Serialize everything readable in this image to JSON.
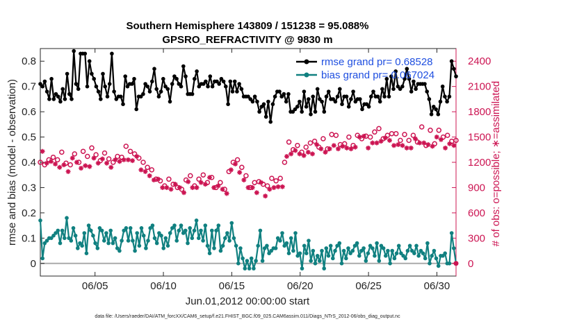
{
  "chart_data": {
    "type": "line",
    "title_line1": "Southern Hemisphere 143809 / 151238 = 95.088%",
    "title_line2": "GPSRO_REFRACTIVITY @ 9830 m",
    "xlabel": "Jun.01,2012 00:00:00 start",
    "ylabel_left": "rmse and bias (model - observation)",
    "ylabel_right": "# of obs: o=possible; ∗=assimilated",
    "footer": "data file: /Users/raeder/DAI/ATM_forcXX/CAM6_setup/f.e21.FHIST_BGC.f09_025.CAM6assim.011/Diags_NTrS_2012-06/obs_diag_output.nc",
    "x_range_days": [
      1,
      31.4
    ],
    "y_left_range": [
      -0.05,
      0.85
    ],
    "y_right_range": [
      -150,
      2550
    ],
    "x_ticks": [
      {
        "day": 5,
        "label": "06/05"
      },
      {
        "day": 10,
        "label": "06/10"
      },
      {
        "day": 15,
        "label": "06/15"
      },
      {
        "day": 20,
        "label": "06/20"
      },
      {
        "day": 25,
        "label": "06/25"
      },
      {
        "day": 30,
        "label": "06/30"
      }
    ],
    "y_left_ticks": [
      0,
      0.1,
      0.2,
      0.3,
      0.4,
      0.5,
      0.6,
      0.7,
      0.8
    ],
    "y_right_ticks": [
      0,
      300,
      600,
      900,
      1200,
      1500,
      1800,
      2100,
      2400
    ],
    "legend": [
      {
        "label": "rmse grand pr= 0.68528",
        "color": "#000000"
      },
      {
        "label": "bias grand pr= 0.067024",
        "color": "#108080"
      }
    ],
    "series": [
      {
        "name": "rmse",
        "color": "#000000",
        "axis": "left",
        "values": [
          0.71,
          0.7,
          0.72,
          0.68,
          0.65,
          0.73,
          0.65,
          0.67,
          0.66,
          0.64,
          0.69,
          0.65,
          0.75,
          0.67,
          0.65,
          0.84,
          0.71,
          0.69,
          0.83,
          0.83,
          0.83,
          0.7,
          0.8,
          0.75,
          0.73,
          0.7,
          0.68,
          0.65,
          0.75,
          0.7,
          0.66,
          0.71,
          0.83,
          0.68,
          0.65,
          0.66,
          0.66,
          0.63,
          0.74,
          0.7,
          0.71,
          0.71,
          0.73,
          0.61,
          0.66,
          0.66,
          0.67,
          0.71,
          0.7,
          0.68,
          0.72,
          0.77,
          0.69,
          0.66,
          0.68,
          0.73,
          0.7,
          0.69,
          0.64,
          0.71,
          0.74,
          0.73,
          0.71,
          0.7,
          0.78,
          0.74,
          0.67,
          0.67,
          0.67,
          0.73,
          0.76,
          0.7,
          0.71,
          0.71,
          0.72,
          0.7,
          0.74,
          0.7,
          0.72,
          0.72,
          0.71,
          0.73,
          0.72,
          0.7,
          0.63,
          0.72,
          0.68,
          0.72,
          0.68,
          0.71,
          0.69,
          0.66,
          0.66,
          0.66,
          0.65,
          0.64,
          0.66,
          0.64,
          0.6,
          0.62,
          0.63,
          0.58,
          0.64,
          0.56,
          0.63,
          0.66,
          0.68,
          0.68,
          0.66,
          0.67,
          0.64,
          0.67,
          0.6,
          0.6,
          0.61,
          0.62,
          0.64,
          0.6,
          0.68,
          0.62,
          0.65,
          0.59,
          0.66,
          0.6,
          0.69,
          0.65,
          0.64,
          0.6,
          0.66,
          0.68,
          0.65,
          0.65,
          0.64,
          0.66,
          0.69,
          0.63,
          0.66,
          0.66,
          0.62,
          0.65,
          0.68,
          0.64,
          0.65,
          0.65,
          0.61,
          0.63,
          0.63,
          0.62,
          0.66,
          0.68,
          0.66,
          0.66,
          0.64,
          0.69,
          0.66,
          0.73,
          0.66,
          0.74,
          0.69,
          0.76,
          0.7,
          0.69,
          0.7,
          0.73,
          0.77,
          0.73,
          0.68,
          0.72,
          0.69,
          0.71,
          0.71,
          0.71,
          0.71,
          0.68,
          0.65,
          0.59,
          0.62,
          0.61,
          0.59,
          0.64,
          0.7,
          0.66,
          0.64,
          0.66,
          0.8,
          0.77,
          0.74
        ]
      },
      {
        "name": "bias",
        "color": "#108080",
        "axis": "left",
        "values": [
          0.17,
          0.02,
          0.08,
          0.09,
          0.1,
          0.1,
          0.11,
          0.12,
          0.13,
          0.08,
          0.13,
          0.1,
          0.18,
          0.1,
          0.09,
          0.14,
          0.11,
          0.06,
          0.08,
          0.07,
          0.12,
          0.04,
          0.15,
          0.13,
          0.11,
          0.08,
          0.06,
          0.14,
          0.13,
          0.09,
          0.12,
          0.08,
          0.13,
          0.08,
          0.1,
          0.06,
          0.05,
          0.09,
          0.13,
          0.14,
          0.09,
          0.14,
          0.09,
          0.05,
          0.12,
          0.07,
          0.14,
          0.11,
          0.06,
          0.09,
          0.14,
          0.15,
          0.1,
          0.08,
          0.12,
          0.11,
          0.06,
          0.1,
          0.07,
          0.12,
          0.14,
          0.15,
          0.09,
          0.13,
          0.15,
          0.12,
          0.13,
          0.08,
          0.14,
          0.1,
          0.13,
          0.17,
          0.1,
          0.13,
          0.09,
          0.15,
          0.07,
          0.04,
          0.13,
          0.06,
          0.13,
          0.15,
          0.05,
          0.07,
          0.1,
          0.12,
          0.09,
          0.16,
          0.1,
          0.07,
          0.0,
          0.06,
          0.02,
          -0.02,
          0.01,
          -0.02,
          0.02,
          -0.02,
          0.01,
          0.07,
          0.13,
          0.01,
          0.06,
          0.07,
          0.04,
          0.05,
          0.06,
          0.06,
          0.1,
          0.09,
          0.12,
          0.07,
          0.08,
          0.04,
          0.1,
          0.05,
          0.12,
          0.03,
          0.04,
          -0.02,
          0.07,
          0.04,
          0.09,
          0.01,
          0.05,
          0.0,
          0.03,
          0.01,
          0.05,
          -0.02,
          0.06,
          0.03,
          0.07,
          0.02,
          0.05,
          0.07,
          0.08,
          0.0,
          0.05,
          0.02,
          0.06,
          0.04,
          0.05,
          0.07,
          0.08,
          0.03,
          0.05,
          0.06,
          0.01,
          0.04,
          0.07,
          0.06,
          0.03,
          0.08,
          0.01,
          0.07,
          0.06,
          0.03,
          0.05,
          0.0,
          0.05,
          0.02,
          0.04,
          0.07,
          0.04,
          0.03,
          0.02,
          0.05,
          0.07,
          0.05,
          0.04,
          0.07,
          0.03,
          0.05,
          0.04,
          0.02,
          0.08,
          0.0,
          0.03,
          0.05,
          0.02,
          -0.01,
          0.03,
          0.03,
          0.04,
          0.0,
          0.0,
          0.12,
          0.06,
          0.0
        ]
      },
      {
        "name": "obs possible",
        "color": "#cc1452",
        "axis": "right",
        "marker": "o",
        "values": [
          1200,
          1400,
          1170,
          1250,
          1230,
          1290,
          1260,
          1250,
          1230,
          1210,
          1320,
          1240,
          1190,
          1160,
          1170,
          1340,
          1300,
          1270,
          1200,
          1200,
          1330,
          1230,
          1270,
          1210,
          1370,
          1330,
          1290,
          1260,
          1220,
          1310,
          1310,
          1260,
          1240,
          1210,
          1200,
          1300,
          1270,
          1280,
          1260,
          1300,
          1390,
          1300,
          1330,
          1290,
          1300,
          1350,
          1250,
          1180,
          1200,
          1150,
          1140,
          1100,
          1110,
          1050,
          1000,
          1060,
          980,
          960,
          920,
          960,
          1000,
          930,
          940,
          1000,
          900,
          950,
          880,
          890,
          990,
          1030,
          1040,
          960,
          920,
          950,
          1000,
          1020,
          1050,
          1000,
          960,
          1080,
          1020,
          950,
          900,
          980,
          960,
          930,
          880,
          880,
          1090,
          1180,
          1200,
          1250,
          1230,
          1150,
          1140,
          1050,
          1040,
          960,
          900,
          960,
          960,
          890,
          970,
          1020,
          940,
          850,
          920,
          930,
          1010,
          950,
          980,
          970,
          1010,
          970,
          1200,
          1350,
          1440,
          1380,
          1350,
          1420,
          1400,
          1380,
          1320,
          1360,
          1380,
          1400,
          1430,
          1380,
          1450,
          1500,
          1380,
          1440,
          1480,
          1400,
          1360,
          1440,
          1530,
          1480,
          1520,
          1440,
          1410,
          1470,
          1420,
          1450,
          1500,
          1440,
          1400,
          1460,
          1520,
          1590,
          1480,
          1600,
          1510,
          1450,
          1500,
          1520,
          1560,
          1520,
          1600,
          1540,
          1480,
          1580,
          1520,
          1550,
          1540,
          1490,
          1540,
          1500,
          1460,
          1480,
          1530,
          1450,
          1460,
          1450,
          1520,
          1570,
          1440,
          1520,
          1620,
          1520,
          1400,
          1490,
          1580,
          1470,
          1420,
          1590,
          1580,
          1560,
          1500,
          1450,
          1520,
          1510,
          1450,
          1480,
          1460
        ]
      },
      {
        "name": "obs assimilated",
        "color": "#cc1452",
        "axis": "right",
        "marker": "*",
        "values": [
          1150,
          1330,
          1110,
          1190,
          1160,
          1210,
          1180,
          1180,
          1150,
          1140,
          1250,
          1170,
          1130,
          1090,
          1100,
          1250,
          1220,
          1200,
          1130,
          1130,
          1260,
          1160,
          1190,
          1150,
          1290,
          1250,
          1220,
          1190,
          1150,
          1240,
          1230,
          1190,
          1170,
          1140,
          1130,
          1230,
          1200,
          1210,
          1190,
          1230,
          1310,
          1230,
          1260,
          1220,
          1230,
          1270,
          1180,
          1110,
          1130,
          1090,
          1070,
          1040,
          1050,
          990,
          940,
          1000,
          920,
          900,
          860,
          900,
          940,
          880,
          880,
          940,
          850,
          900,
          830,
          840,
          930,
          970,
          980,
          900,
          870,
          900,
          940,
          960,
          990,
          940,
          900,
          1020,
          960,
          900,
          850,
          920,
          900,
          880,
          830,
          830,
          1020,
          1110,
          1130,
          1180,
          1160,
          1080,
          1070,
          990,
          980,
          900,
          850,
          900,
          900,
          840,
          910,
          960,
          890,
          800,
          870,
          880,
          950,
          900,
          920,
          910,
          950,
          910,
          1130,
          1270,
          1360,
          1300,
          1270,
          1340,
          1320,
          1300,
          1250,
          1280,
          1300,
          1320,
          1350,
          1300,
          1370,
          1410,
          1300,
          1360,
          1400,
          1320,
          1280,
          1360,
          1440,
          1400,
          1430,
          1360,
          1330,
          1390,
          1340,
          1370,
          1410,
          1360,
          1320,
          1380,
          1430,
          1500,
          1400,
          1510,
          1420,
          1370,
          1410,
          1430,
          1470,
          1430,
          1510,
          1450,
          1400,
          1490,
          1430,
          1460,
          1450,
          1400,
          1450,
          1410,
          1380,
          1400,
          1440,
          1370,
          1380,
          1370,
          1430,
          1480,
          1360,
          1430,
          1530,
          1430,
          1320,
          1410,
          1490,
          1390,
          1340,
          1500,
          1490,
          1470,
          1410,
          1370,
          1430,
          1420,
          1370,
          1400,
          1380
        ]
      }
    ]
  }
}
